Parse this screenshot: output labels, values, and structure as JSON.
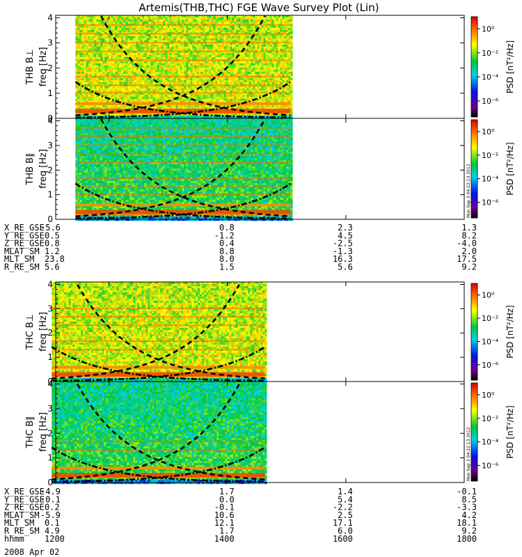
{
  "title": "Artemis(THB,THC) FGE Wave Survey Plot (Lin)",
  "date_label": "2008 Apr 02",
  "panels": [
    {
      "label": "THB B⊥",
      "ylabel": "freq [Hz]",
      "yticks": [
        "0",
        "1",
        "2",
        "3",
        "4"
      ],
      "colorbar_label": "PSD [nT²/Hz]",
      "stamp": "",
      "data_start": "11:26",
      "data_end": "15:04"
    },
    {
      "label": "THB B∥",
      "ylabel": "freq [Hz]",
      "yticks": [
        "0",
        "1",
        "2",
        "3",
        "4"
      ],
      "colorbar_label": "PSD [nT²/Hz]",
      "stamp": "Mon Sep 3 04:22:13 2012",
      "data_start": "11:26",
      "data_end": "15:04"
    },
    {
      "label": "THC B⊥",
      "ylabel": "freq [Hz]",
      "yticks": [
        "0",
        "1",
        "2",
        "3",
        "4"
      ],
      "colorbar_label": "PSD [nT²/Hz]",
      "stamp": "",
      "data_start": "11:02",
      "data_end": "14:38"
    },
    {
      "label": "THC B∥",
      "ylabel": "freq [Hz]",
      "yticks": [
        "0",
        "1",
        "2",
        "3",
        "4"
      ],
      "colorbar_label": "PSD [nT²/Hz]",
      "stamp": "Mon Sep 3 04:22:13 2012",
      "data_start": "11:02",
      "data_end": "14:38"
    }
  ],
  "colorbar_ticks": [
    "10⁰",
    "10⁻²",
    "10⁻⁴",
    "10⁻⁶"
  ],
  "ephemeris_thb": [
    {
      "name": "X_RE_GSE",
      "values": [
        "-5.6",
        "0.8",
        "2.3",
        "1.3"
      ]
    },
    {
      "name": "Y_RE_GSE",
      "values": [
        "0.5",
        "-1.2",
        "4.5",
        "8.2"
      ]
    },
    {
      "name": "Z_RE_GSE",
      "values": [
        "0.8",
        "0.4",
        "-2.5",
        "-4.0"
      ]
    },
    {
      "name": "MLAT_SM",
      "values": [
        "1.2",
        "8.8",
        "-1.3",
        "2.0"
      ]
    },
    {
      "name": "MLT_SM",
      "values": [
        "23.8",
        "8.0",
        "16.3",
        "17.5"
      ]
    },
    {
      "name": "R_RE_SM",
      "values": [
        "5.6",
        "1.5",
        "5.6",
        "9.2"
      ]
    }
  ],
  "ephemeris_thc": [
    {
      "name": "X_RE_GSE",
      "values": [
        "-4.9",
        "1.7",
        "1.4",
        "-0.1"
      ]
    },
    {
      "name": "Y_RE_GSE",
      "values": [
        "-0.1",
        "0.0",
        "5.4",
        "8.5"
      ]
    },
    {
      "name": "Z_RE_GSE",
      "values": [
        "0.2",
        "-0.1",
        "-2.2",
        "-3.3"
      ]
    },
    {
      "name": "MLAT_SM",
      "values": [
        "-5.9",
        "10.6",
        "2.5",
        "4.2"
      ]
    },
    {
      "name": "MLT_SM",
      "values": [
        "0.1",
        "12.1",
        "17.1",
        "18.1"
      ]
    },
    {
      "name": "R_RE_SM",
      "values": [
        "4.9",
        "1.7",
        "6.0",
        "9.2"
      ]
    },
    {
      "name": "hhmm",
      "values": [
        "1200",
        "1400",
        "1600",
        "1800"
      ]
    }
  ],
  "chart_data": {
    "type": "heatmap",
    "title": "Artemis(THB,THC) FGE Wave Survey Plot (Lin)",
    "x_axis": {
      "label": "hhmm",
      "range": [
        "11:06",
        "18:00"
      ],
      "ticks": [
        "1200",
        "1400",
        "1600",
        "1800"
      ]
    },
    "y_axis": {
      "label": "freq [Hz]",
      "range": [
        0,
        4.1
      ],
      "ticks": [
        0,
        1,
        2,
        3,
        4
      ]
    },
    "color_scale": {
      "label": "PSD [nT²/Hz]",
      "scale": "log",
      "range": [
        1e-07,
        10
      ],
      "colormap": "rainbow (black-purple-blue-cyan-green-yellow-red)"
    },
    "series": [
      {
        "name": "THB B⊥",
        "time_start": "11:26",
        "time_end": "15:04",
        "spectral_lines_hz": [
          0.25,
          0.6,
          1.0,
          1.3,
          1.65,
          2.3,
          2.65,
          3.0,
          3.35,
          3.7
        ],
        "gyro_curves": true
      },
      {
        "name": "THB B∥",
        "time_start": "11:26",
        "time_end": "15:04",
        "spectral_lines_hz": [
          0.25,
          0.6,
          1.0,
          1.3,
          1.65,
          2.3,
          2.65,
          3.0,
          3.35,
          3.7
        ],
        "gyro_curves": true
      },
      {
        "name": "THC B⊥",
        "time_start": "11:02",
        "time_end": "14:38",
        "spectral_lines_hz": [
          0.25,
          0.6,
          1.3,
          1.65,
          2.3,
          2.65,
          3.0
        ],
        "gyro_curves": true
      },
      {
        "name": "THC B∥",
        "time_start": "11:02",
        "time_end": "14:38",
        "spectral_lines_hz": [
          0.25,
          0.6,
          1.3,
          1.65
        ],
        "gyro_curves": true
      }
    ]
  }
}
